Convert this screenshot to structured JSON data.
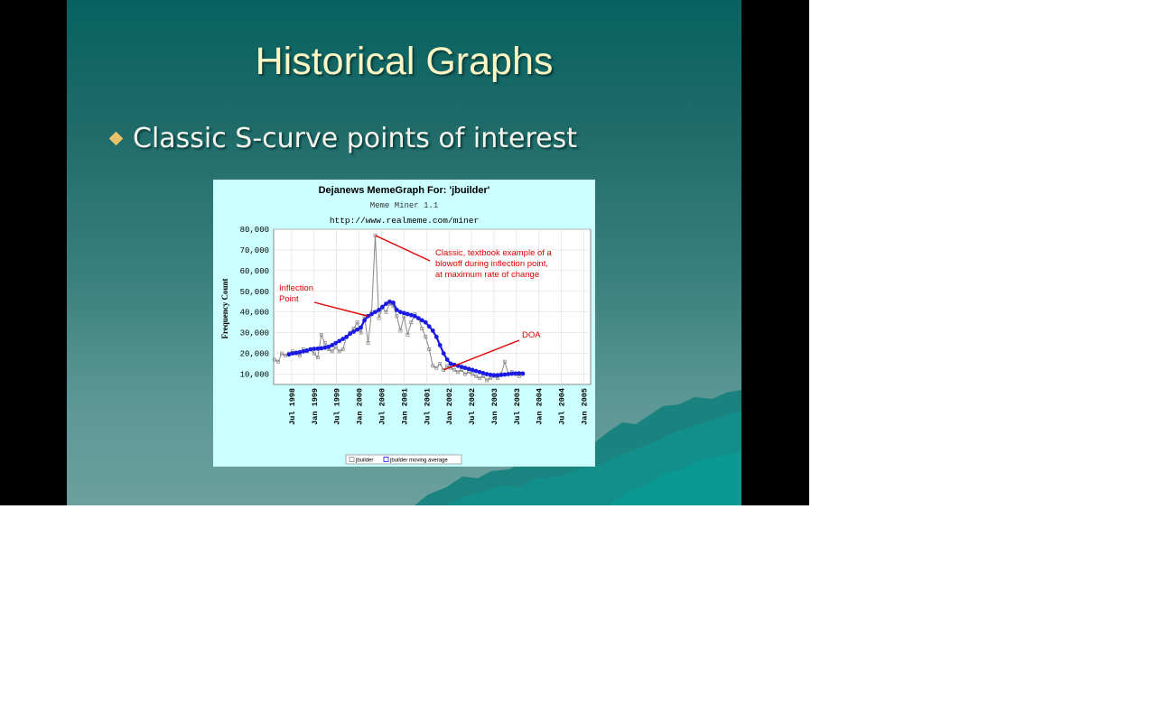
{
  "slide": {
    "title": "Historical Graphs",
    "bullet": "Classic S-curve points of interest",
    "colors": {
      "background_top": "#066260",
      "background_bottom": "#6aa09e",
      "title": "#fbf6c4",
      "bullet_icon": "#e9c36a"
    },
    "bullet_icon": "diamond-bullet-icon"
  },
  "chart_data": {
    "type": "line",
    "title": "Dejanews MemeGraph For: 'jbuilder'",
    "subtitle_1": "Meme Miner 1.1",
    "subtitle_2": "http://www.realmeme.com/miner",
    "ylabel": "Frequency Count",
    "xlabel": "",
    "ylim": [
      5000,
      80000
    ],
    "yticks": [
      10000,
      20000,
      30000,
      40000,
      50000,
      60000,
      70000,
      80000
    ],
    "ytick_labels": [
      "10,000",
      "20,000",
      "30,000",
      "40,000",
      "50,000",
      "60,000",
      "70,000",
      "80,000"
    ],
    "xticks": [
      {
        "x": 1998.5,
        "label": "Jul 1998"
      },
      {
        "x": 1999.0,
        "label": "Jan 1999"
      },
      {
        "x": 1999.5,
        "label": "Jul 1999"
      },
      {
        "x": 2000.0,
        "label": "Jan 2000"
      },
      {
        "x": 2000.5,
        "label": "Jul 2000"
      },
      {
        "x": 2001.0,
        "label": "Jan 2001"
      },
      {
        "x": 2001.5,
        "label": "Jul 2001"
      },
      {
        "x": 2002.0,
        "label": "Jan 2002"
      },
      {
        "x": 2002.5,
        "label": "Jul 2002"
      },
      {
        "x": 2003.0,
        "label": "Jan 2003"
      },
      {
        "x": 2003.5,
        "label": "Jul 2003"
      },
      {
        "x": 2004.0,
        "label": "Jan 2004"
      },
      {
        "x": 2004.5,
        "label": "Jul 2004"
      },
      {
        "x": 2005.0,
        "label": "Jan 2005"
      }
    ],
    "xlim": [
      1998.1,
      2005.15
    ],
    "grid": true,
    "legend_position": "bottom-center",
    "series": [
      {
        "name": "jbuilder",
        "color": "#888888",
        "points": [
          [
            1998.12,
            17000
          ],
          [
            1998.2,
            16000
          ],
          [
            1998.28,
            20000
          ],
          [
            1998.36,
            19000
          ],
          [
            1998.44,
            20000
          ],
          [
            1998.52,
            21000
          ],
          [
            1998.6,
            20000
          ],
          [
            1998.68,
            19000
          ],
          [
            1998.76,
            22000
          ],
          [
            1998.84,
            21000
          ],
          [
            1998.92,
            22000
          ],
          [
            1999.0,
            20000
          ],
          [
            1999.08,
            18000
          ],
          [
            1999.16,
            29000
          ],
          [
            1999.24,
            25000
          ],
          [
            1999.32,
            22000
          ],
          [
            1999.4,
            21000
          ],
          [
            1999.48,
            23000
          ],
          [
            1999.56,
            21000
          ],
          [
            1999.64,
            22000
          ],
          [
            1999.72,
            28000
          ],
          [
            1999.8,
            30000
          ],
          [
            1999.88,
            32000
          ],
          [
            1999.96,
            35000
          ],
          [
            2000.04,
            30000
          ],
          [
            2000.12,
            38000
          ],
          [
            2000.2,
            25000
          ],
          [
            2000.28,
            40000
          ],
          [
            2000.36,
            77000
          ],
          [
            2000.44,
            37000
          ],
          [
            2000.52,
            42000
          ],
          [
            2000.6,
            40000
          ],
          [
            2000.68,
            44000
          ],
          [
            2000.76,
            43000
          ],
          [
            2000.84,
            38000
          ],
          [
            2000.92,
            31000
          ],
          [
            2001.0,
            38000
          ],
          [
            2001.08,
            29000
          ],
          [
            2001.16,
            35000
          ],
          [
            2001.24,
            39000
          ],
          [
            2001.32,
            37000
          ],
          [
            2001.4,
            32000
          ],
          [
            2001.48,
            28000
          ],
          [
            2001.56,
            22000
          ],
          [
            2001.64,
            14000
          ],
          [
            2001.72,
            13000
          ],
          [
            2001.8,
            15000
          ],
          [
            2001.88,
            12000
          ],
          [
            2001.96,
            14000
          ],
          [
            2002.04,
            13000
          ],
          [
            2002.12,
            12000
          ],
          [
            2002.2,
            11000
          ],
          [
            2002.28,
            12000
          ],
          [
            2002.36,
            10000
          ],
          [
            2002.44,
            11000
          ],
          [
            2002.52,
            10000
          ],
          [
            2002.6,
            9000
          ],
          [
            2002.68,
            8000
          ],
          [
            2002.76,
            9000
          ],
          [
            2002.84,
            7000
          ],
          [
            2002.92,
            8000
          ],
          [
            2003.0,
            9000
          ],
          [
            2003.08,
            8000
          ],
          [
            2003.16,
            10000
          ],
          [
            2003.24,
            16000
          ],
          [
            2003.32,
            10000
          ],
          [
            2003.4,
            11000
          ],
          [
            2003.48,
            10000
          ],
          [
            2003.56,
            9000
          ],
          [
            2003.64,
            10000
          ]
        ]
      },
      {
        "name": "jbuilder moving average",
        "color": "#1a1ae6",
        "points": [
          [
            1998.44,
            19500
          ],
          [
            1998.52,
            20000
          ],
          [
            1998.6,
            20300
          ],
          [
            1998.68,
            20600
          ],
          [
            1998.76,
            21000
          ],
          [
            1998.84,
            21400
          ],
          [
            1998.92,
            22000
          ],
          [
            1999.0,
            22200
          ],
          [
            1999.08,
            22300
          ],
          [
            1999.16,
            22500
          ],
          [
            1999.24,
            22800
          ],
          [
            1999.32,
            23200
          ],
          [
            1999.4,
            24000
          ],
          [
            1999.48,
            25000
          ],
          [
            1999.56,
            26000
          ],
          [
            1999.64,
            27000
          ],
          [
            1999.72,
            28000
          ],
          [
            1999.8,
            29500
          ],
          [
            1999.88,
            30500
          ],
          [
            1999.96,
            31500
          ],
          [
            2000.04,
            32500
          ],
          [
            2000.12,
            36000
          ],
          [
            2000.2,
            38000
          ],
          [
            2000.28,
            39000
          ],
          [
            2000.36,
            40000
          ],
          [
            2000.44,
            41000
          ],
          [
            2000.52,
            42500
          ],
          [
            2000.6,
            44000
          ],
          [
            2000.68,
            45000
          ],
          [
            2000.76,
            44500
          ],
          [
            2000.84,
            41000
          ],
          [
            2000.92,
            40000
          ],
          [
            2001.0,
            39500
          ],
          [
            2001.08,
            39000
          ],
          [
            2001.16,
            38500
          ],
          [
            2001.24,
            38000
          ],
          [
            2001.32,
            37000
          ],
          [
            2001.4,
            36000
          ],
          [
            2001.48,
            35000
          ],
          [
            2001.56,
            33000
          ],
          [
            2001.64,
            31000
          ],
          [
            2001.72,
            28000
          ],
          [
            2001.8,
            24000
          ],
          [
            2001.88,
            20000
          ],
          [
            2001.96,
            17000
          ],
          [
            2002.04,
            15000
          ],
          [
            2002.12,
            14500
          ],
          [
            2002.2,
            14000
          ],
          [
            2002.28,
            13500
          ],
          [
            2002.36,
            13000
          ],
          [
            2002.44,
            12500
          ],
          [
            2002.52,
            12000
          ],
          [
            2002.6,
            11500
          ],
          [
            2002.68,
            11000
          ],
          [
            2002.76,
            10500
          ],
          [
            2002.84,
            10000
          ],
          [
            2002.92,
            9700
          ],
          [
            2003.0,
            9500
          ],
          [
            2003.08,
            9500
          ],
          [
            2003.16,
            9600
          ],
          [
            2003.24,
            9800
          ],
          [
            2003.32,
            10000
          ],
          [
            2003.4,
            10200
          ],
          [
            2003.48,
            10300
          ],
          [
            2003.56,
            10400
          ],
          [
            2003.64,
            10300
          ]
        ]
      }
    ],
    "annotations": [
      {
        "text_lines": [
          "Classic, textbook example of a",
          "blowoff during inflection point,",
          "at maximum rate of change"
        ],
        "points_to": [
          2000.36,
          77000
        ]
      },
      {
        "text_lines": [
          "Inflection",
          "Point"
        ],
        "points_to": [
          2000.2,
          38000
        ]
      },
      {
        "text_lines": [
          "DOA"
        ],
        "points_to": [
          2001.88,
          12000
        ]
      }
    ],
    "legend": [
      "jbuilder",
      "jbuilder moving average"
    ]
  }
}
